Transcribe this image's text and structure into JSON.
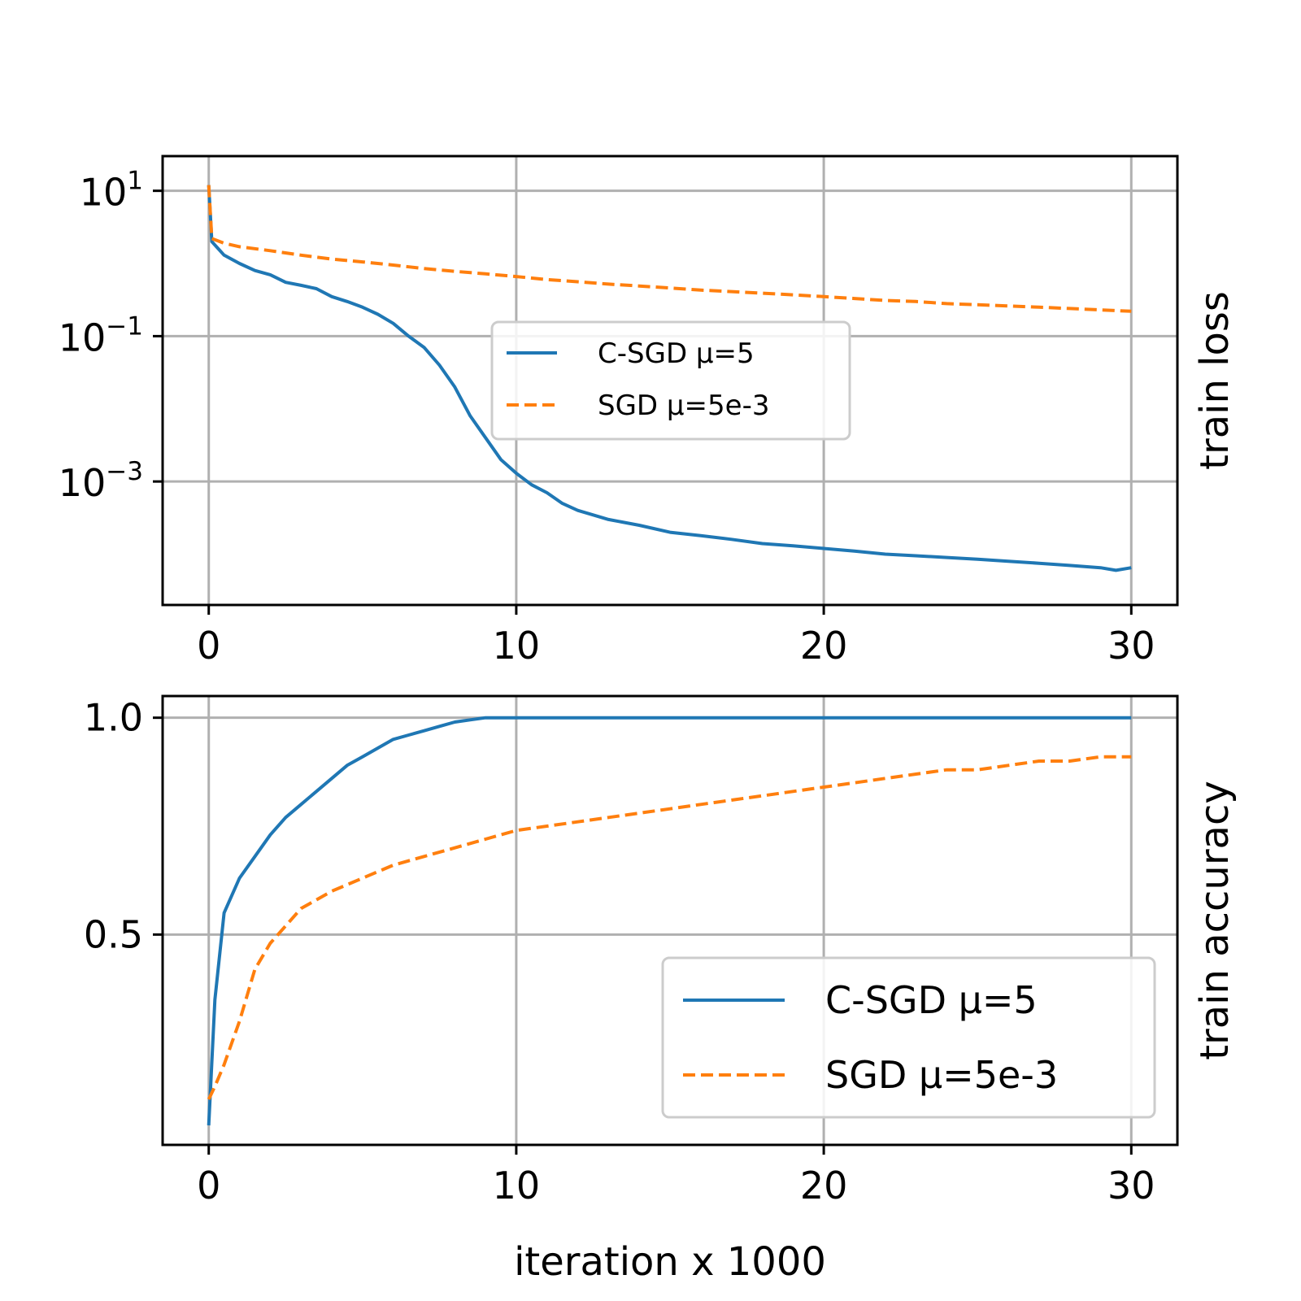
{
  "chart_data": [
    {
      "type": "line",
      "panel": "top",
      "xlabel": "",
      "ylabel": "train loss",
      "yscale": "log",
      "xlim": [
        -1.5,
        31.5
      ],
      "ylim": [
        2e-05,
        30
      ],
      "grid": true,
      "legend_placement": "center",
      "x_ticks": [
        {
          "value": 0,
          "label": "0"
        },
        {
          "value": 10,
          "label": "10"
        },
        {
          "value": 20,
          "label": "20"
        },
        {
          "value": 30,
          "label": "30"
        }
      ],
      "y_ticks": [
        {
          "value": 10,
          "base": "10",
          "exp": "1"
        },
        {
          "value": 0.1,
          "base": "10",
          "exp": "−1"
        },
        {
          "value": 0.001,
          "base": "10",
          "exp": "−3"
        }
      ],
      "series": [
        {
          "name": "C-SGD μ=5",
          "color": "#1f77b4",
          "dash": "solid",
          "x": [
            0,
            0.1,
            0.5,
            1,
            1.5,
            2,
            2.5,
            3,
            3.5,
            4,
            4.5,
            5,
            5.5,
            6,
            6.5,
            7,
            7.5,
            8,
            8.5,
            9,
            9.5,
            10,
            10.5,
            11,
            11.5,
            12,
            13,
            14,
            15,
            16,
            17,
            18,
            19,
            20,
            21,
            22,
            23,
            24,
            25,
            26,
            27,
            28,
            29,
            29.5,
            30
          ],
          "y": [
            12,
            2.0,
            1.3,
            1.0,
            0.8,
            0.7,
            0.55,
            0.5,
            0.45,
            0.35,
            0.3,
            0.25,
            0.2,
            0.15,
            0.1,
            0.07,
            0.04,
            0.02,
            0.008,
            0.004,
            0.002,
            0.0013,
            0.0009,
            0.0007,
            0.0005,
            0.0004,
            0.0003,
            0.00025,
            0.0002,
            0.00018,
            0.00016,
            0.00014,
            0.00013,
            0.00012,
            0.00011,
            0.0001,
            9.5e-05,
            9e-05,
            8.5e-05,
            8e-05,
            7.5e-05,
            7e-05,
            6.5e-05,
            6e-05,
            6.5e-05
          ]
        },
        {
          "name": "SGD μ=5e-3",
          "color": "#ff7f0e",
          "dash": "dashed",
          "x": [
            0,
            0.1,
            0.5,
            1,
            2,
            3,
            4,
            5,
            6,
            7,
            8,
            9,
            10,
            11,
            12,
            13,
            14,
            15,
            16,
            17,
            18,
            19,
            20,
            21,
            22,
            23,
            24,
            25,
            26,
            27,
            28,
            29,
            30
          ],
          "y": [
            12,
            2.2,
            1.9,
            1.7,
            1.5,
            1.3,
            1.15,
            1.05,
            0.95,
            0.85,
            0.78,
            0.72,
            0.66,
            0.6,
            0.56,
            0.52,
            0.49,
            0.46,
            0.43,
            0.41,
            0.39,
            0.37,
            0.35,
            0.33,
            0.31,
            0.3,
            0.28,
            0.27,
            0.26,
            0.25,
            0.24,
            0.23,
            0.22
          ]
        }
      ]
    },
    {
      "type": "line",
      "panel": "bottom",
      "xlabel": "iteration x 1000",
      "ylabel": "train accuracy",
      "yscale": "linear",
      "xlim": [
        -1.5,
        31.5
      ],
      "ylim": [
        0.015,
        1.05
      ],
      "grid": true,
      "legend_placement": "lower right",
      "x_ticks": [
        {
          "value": 0,
          "label": "0"
        },
        {
          "value": 10,
          "label": "10"
        },
        {
          "value": 20,
          "label": "20"
        },
        {
          "value": 30,
          "label": "30"
        }
      ],
      "y_ticks": [
        {
          "value": 1.0,
          "label": "1.0"
        },
        {
          "value": 0.5,
          "label": "0.5"
        }
      ],
      "series": [
        {
          "name": "C-SGD μ=5",
          "color": "#1f77b4",
          "dash": "solid",
          "x": [
            0,
            0.2,
            0.5,
            1,
            1.5,
            2,
            2.5,
            3,
            3.5,
            4,
            4.5,
            5,
            5.5,
            6,
            6.5,
            7,
            7.5,
            8,
            8.5,
            9,
            10,
            15,
            20,
            25,
            30
          ],
          "y": [
            0.06,
            0.35,
            0.55,
            0.63,
            0.68,
            0.73,
            0.77,
            0.8,
            0.83,
            0.86,
            0.89,
            0.91,
            0.93,
            0.95,
            0.96,
            0.97,
            0.98,
            0.99,
            0.995,
            1.0,
            1.0,
            1.0,
            1.0,
            1.0,
            1.0
          ]
        },
        {
          "name": "SGD μ=5e-3",
          "color": "#ff7f0e",
          "dash": "dashed",
          "x": [
            0,
            0.2,
            0.5,
            1,
            1.5,
            2,
            2.5,
            3,
            4,
            5,
            6,
            7,
            8,
            9,
            10,
            11,
            12,
            13,
            14,
            15,
            16,
            17,
            18,
            19,
            20,
            21,
            22,
            23,
            24,
            25,
            26,
            27,
            28,
            29,
            30
          ],
          "y": [
            0.12,
            0.15,
            0.2,
            0.3,
            0.42,
            0.48,
            0.52,
            0.56,
            0.6,
            0.63,
            0.66,
            0.68,
            0.7,
            0.72,
            0.74,
            0.75,
            0.76,
            0.77,
            0.78,
            0.79,
            0.8,
            0.81,
            0.82,
            0.83,
            0.84,
            0.85,
            0.86,
            0.87,
            0.88,
            0.88,
            0.89,
            0.9,
            0.9,
            0.91,
            0.91
          ]
        }
      ]
    }
  ]
}
